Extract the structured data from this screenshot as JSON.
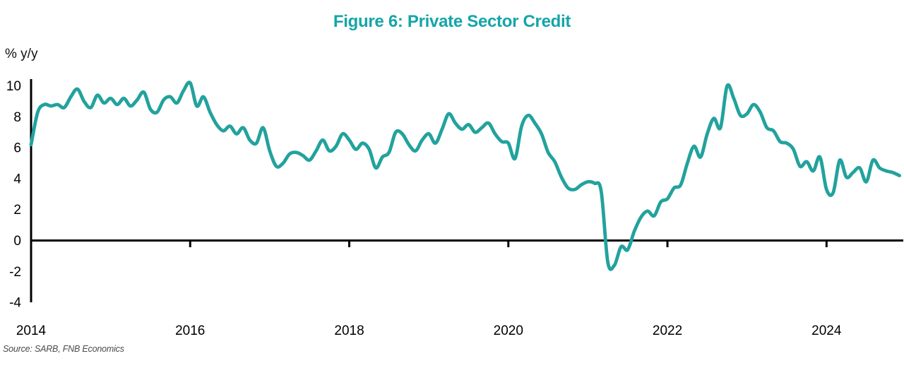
{
  "page": {
    "title": "Figure 6: Private Sector Credit",
    "source_note": "Source: SARB, FNB Economics"
  },
  "colors": {
    "title_teal": "#14a5a9",
    "line_teal": "#22a29d",
    "axis_black": "#000000"
  },
  "chart_data": {
    "type": "line",
    "title": "Figure 6: Private Sector Credit",
    "ylabel": "% y/y",
    "xlabel": "",
    "frequency": "monthly",
    "x_start": "2014-01",
    "x_end": "2024-12",
    "x_ticks": [
      "2014",
      "2016",
      "2018",
      "2020",
      "2022",
      "2024"
    ],
    "y_ticks": [
      10,
      8,
      6,
      4,
      2,
      0,
      -2,
      -4
    ],
    "ylim": [
      -4,
      10.5
    ],
    "grid": false,
    "legend": "none",
    "zero_baseline": true,
    "series": [
      {
        "name": "Private sector credit, % y/y",
        "color": "#22a29d",
        "values": [
          6.2,
          8.3,
          8.8,
          8.7,
          8.8,
          8.6,
          9.3,
          9.8,
          9.0,
          8.6,
          9.4,
          8.9,
          9.2,
          8.8,
          9.2,
          8.7,
          9.1,
          9.6,
          8.5,
          8.3,
          9.1,
          9.3,
          8.9,
          9.7,
          10.2,
          8.7,
          9.3,
          8.3,
          7.5,
          7.1,
          7.4,
          6.9,
          7.3,
          6.5,
          6.3,
          7.3,
          5.8,
          4.8,
          5.0,
          5.6,
          5.7,
          5.5,
          5.2,
          5.8,
          6.5,
          5.8,
          6.1,
          6.9,
          6.5,
          5.9,
          6.3,
          5.9,
          4.7,
          5.4,
          5.7,
          7.0,
          6.9,
          6.2,
          5.8,
          6.5,
          6.9,
          6.3,
          7.2,
          8.2,
          7.6,
          7.2,
          7.5,
          7.0,
          7.3,
          7.6,
          6.9,
          6.4,
          6.3,
          5.3,
          7.4,
          8.1,
          7.6,
          6.9,
          5.7,
          5.1,
          4.1,
          3.4,
          3.3,
          3.6,
          3.8,
          3.7,
          3.2,
          -1.4,
          -1.6,
          -0.4,
          -0.6,
          0.6,
          1.5,
          1.9,
          1.6,
          2.5,
          2.7,
          3.4,
          3.6,
          5.0,
          6.1,
          5.4,
          6.9,
          7.9,
          7.3,
          10.0,
          9.2,
          8.1,
          8.2,
          8.8,
          8.3,
          7.3,
          7.1,
          6.4,
          6.3,
          5.9,
          4.8,
          5.1,
          4.5,
          5.4,
          3.3,
          3.1,
          5.2,
          4.1,
          4.4,
          4.7,
          3.8,
          5.2,
          4.7,
          4.5,
          4.4,
          4.2
        ]
      }
    ]
  }
}
